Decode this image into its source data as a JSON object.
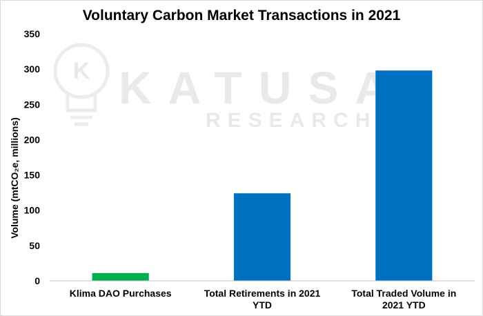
{
  "chart_data": {
    "type": "bar",
    "title": "Voluntary Carbon Market Transactions in 2021",
    "ylabel": "Volume (mtCO₂e, millions)",
    "xlabel": "",
    "categories": [
      [
        "Klima DAO Purchases"
      ],
      [
        "Total Retirements in 2021",
        "YTD"
      ],
      [
        "Total Traded Volume in",
        "2021 YTD"
      ]
    ],
    "values": [
      11,
      124,
      298
    ],
    "colors": [
      "#00b050",
      "#0070c0",
      "#0070c0"
    ],
    "ylim": [
      0,
      350
    ],
    "yticks": [
      0,
      50,
      100,
      150,
      200,
      250,
      300,
      350
    ],
    "grid": false,
    "legend": "none"
  },
  "watermark": {
    "logo_letter": "K",
    "line1": "KATUSA",
    "line2": "RESEARCH"
  }
}
